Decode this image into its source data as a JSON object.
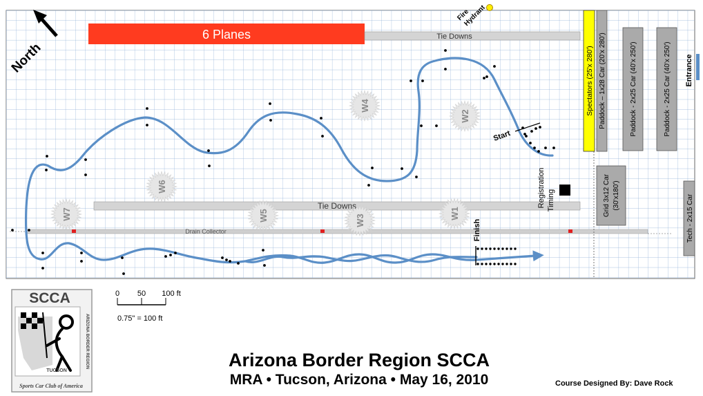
{
  "north": {
    "label": "North"
  },
  "planes": {
    "label": "6 Planes",
    "color": "#ff3b1f"
  },
  "tiedowns_top": {
    "label": "Tie Downs"
  },
  "tiedowns_mid": {
    "label": "Tie Downs"
  },
  "drain": {
    "label": "Drain Collector"
  },
  "fire_hydrant": {
    "line1": "Fire",
    "line2": "Hydrant"
  },
  "spectators": {
    "label": "Spectators (25'x 280')",
    "color": "#ffff00"
  },
  "paddocks": [
    {
      "label": "Paddock – 1x28 Car (20'x 280')"
    },
    {
      "label": "Paddock - 2x25 Car (40'x 250')"
    },
    {
      "label": "Paddock - 2x25 Car (40'x 250')"
    }
  ],
  "entrance": {
    "label": "Entrance"
  },
  "grid": {
    "line1": "Grid 3x12 Car",
    "line2": "(30'x180')"
  },
  "tech": {
    "label": "Tech - 2x15 Car"
  },
  "registration": {
    "line1": "Registration",
    "line2": "Timing"
  },
  "start": {
    "label": "Start"
  },
  "finish": {
    "label": "Finish"
  },
  "workers": [
    "W1",
    "W2",
    "W3",
    "W4",
    "W5",
    "W6",
    "W7"
  ],
  "scale": {
    "ticks": [
      "0",
      "50",
      "100 ft"
    ],
    "ratio": "0.75\" = 100 ft"
  },
  "logo": {
    "top": "SCCA",
    "ring": "ARIZONA BORDER REGION",
    "city": "TUCSON",
    "bottom": "Sports Car Club of America"
  },
  "title": "Arizona Border Region SCCA",
  "subtitle": "MRA • Tucson, Arizona • May 16, 2010",
  "designer": "Course Designed By:  Dave Rock",
  "colors": {
    "course": "#5b8fc7",
    "grid": "#8fb0d8",
    "tiedown": "#d4d4d4"
  }
}
